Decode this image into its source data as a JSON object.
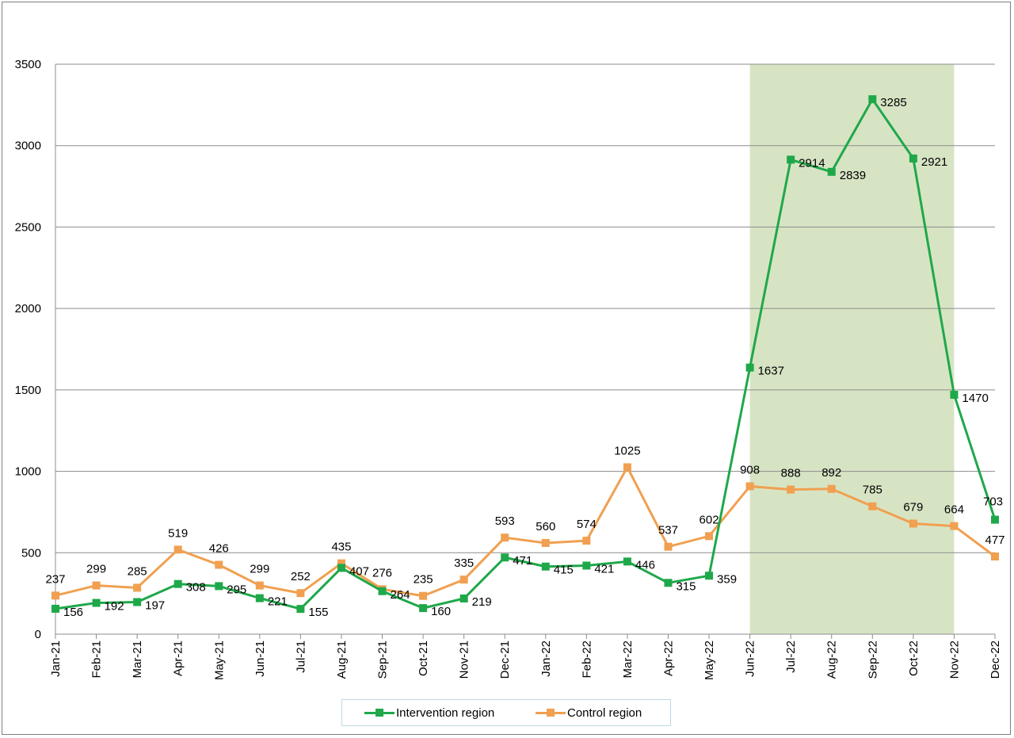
{
  "chart_data": {
    "type": "line",
    "categories": [
      "Jan-21",
      "Feb-21",
      "Mar-21",
      "Apr-21",
      "May-21",
      "Jun-21",
      "Jul-21",
      "Aug-21",
      "Sep-21",
      "Oct-21",
      "Nov-21",
      "Dec-21",
      "Jan-22",
      "Feb-22",
      "Mar-22",
      "Apr-22",
      "May-22",
      "Jun-22",
      "Jul-22",
      "Aug-22",
      "Sep-22",
      "Oct-22",
      "Nov-22",
      "Dec-22"
    ],
    "series": [
      {
        "name": "Intervention region",
        "color": "#1fa84a",
        "values": [
          156,
          192,
          197,
          308,
          295,
          221,
          155,
          407,
          264,
          160,
          219,
          471,
          415,
          421,
          446,
          315,
          359,
          1637,
          2914,
          2839,
          3285,
          2921,
          1470,
          703
        ]
      },
      {
        "name": "Control region",
        "color": "#f0a050",
        "values": [
          237,
          299,
          285,
          519,
          426,
          299,
          252,
          435,
          276,
          235,
          335,
          593,
          560,
          574,
          1025,
          537,
          602,
          908,
          888,
          892,
          785,
          679,
          664,
          477
        ]
      }
    ],
    "ylim": [
      0,
      3500
    ],
    "yticks": [
      "0",
      "500",
      "1000",
      "1500",
      "2000",
      "2500",
      "3000",
      "3500"
    ],
    "highlight_range": [
      "Jun-22",
      "Nov-22"
    ],
    "highlight_color": "#d7e4c4",
    "grid": true,
    "legend_position": "bottom",
    "title": "",
    "xlabel": "",
    "ylabel": ""
  }
}
